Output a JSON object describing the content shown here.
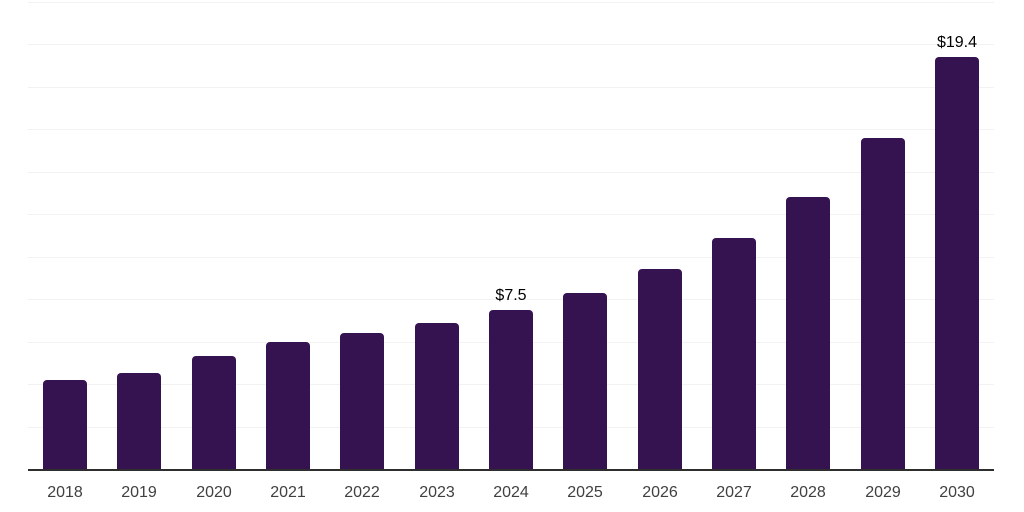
{
  "chart_data": {
    "type": "bar",
    "title": "",
    "xlabel": "",
    "ylabel": "",
    "categories": [
      "2018",
      "2019",
      "2020",
      "2021",
      "2022",
      "2023",
      "2024",
      "2025",
      "2026",
      "2027",
      "2028",
      "2029",
      "2030"
    ],
    "values": [
      4.2,
      4.5,
      5.3,
      6.0,
      6.4,
      6.9,
      7.5,
      8.3,
      9.4,
      10.9,
      12.8,
      15.6,
      19.4
    ],
    "data_labels": [
      "",
      "",
      "",
      "",
      "",
      "",
      "$7.5",
      "",
      "",
      "",
      "",
      "",
      "$19.4"
    ],
    "ylim": [
      0,
      22
    ],
    "grid_step": 2,
    "grid": true,
    "legend": false,
    "colors": {
      "bar": "#351250",
      "axis": "#2e2e2e",
      "gridline": "#f2f2f2",
      "data_label": "#000000",
      "tick_label": "#404040",
      "background": "#ffffff"
    }
  }
}
